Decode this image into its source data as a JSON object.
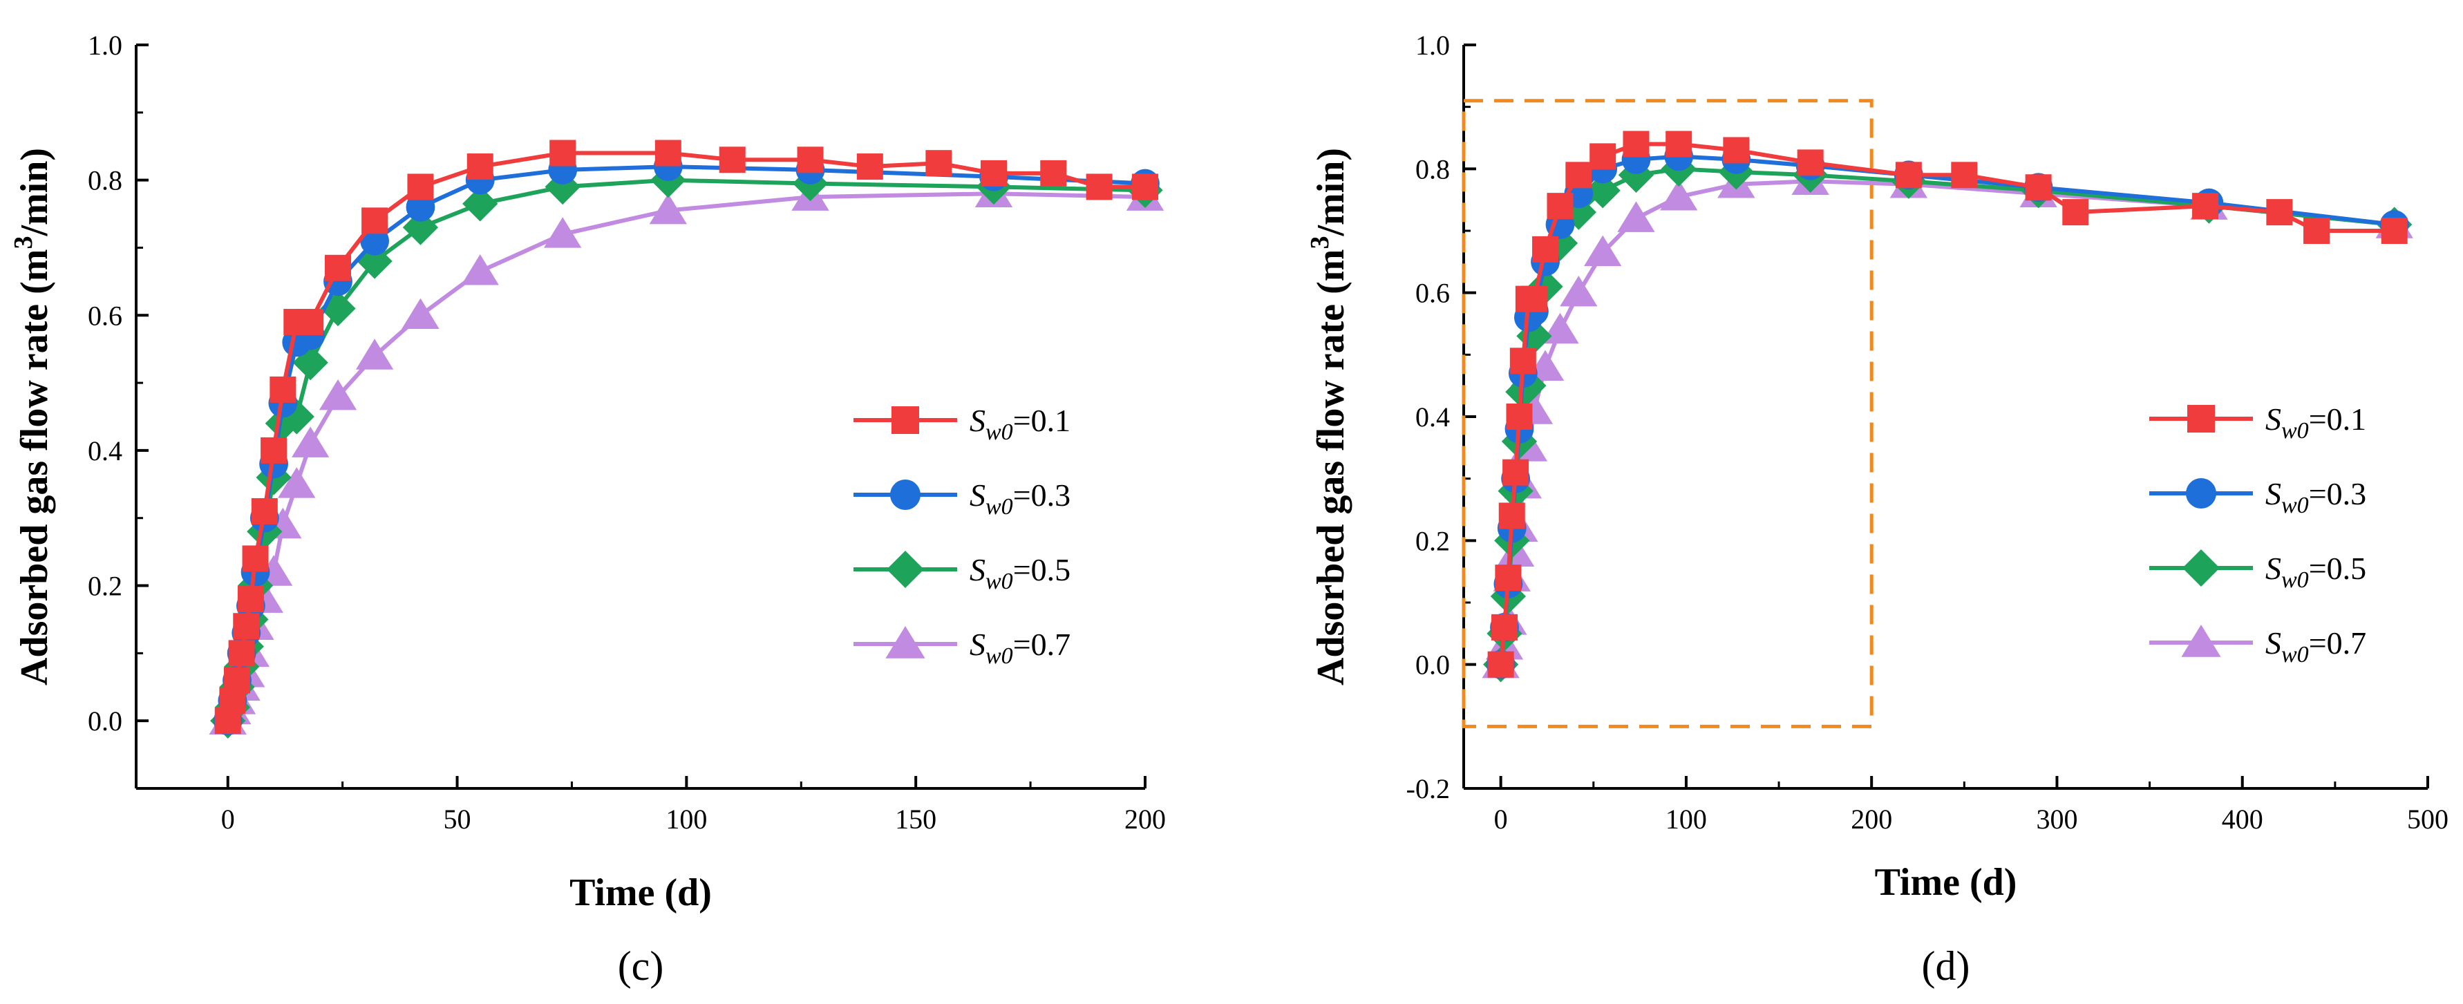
{
  "chart_data": [
    {
      "type": "line",
      "panel_label": "(c)",
      "xlabel": "Time (d)",
      "ylabel": {
        "pre": "Adsorbed gas flow rate (m",
        "sup": "3",
        "post": "/min)"
      },
      "xlim": [
        -20,
        200
      ],
      "ylim": [
        -0.1,
        1.0
      ],
      "xticks": [
        0,
        50,
        100,
        150,
        200
      ],
      "xtick_labels": [
        "0",
        "50",
        "100",
        "150",
        "200"
      ],
      "yticks": [
        0.0,
        0.2,
        0.4,
        0.6,
        0.8,
        1.0
      ],
      "ytick_labels": [
        "0.0",
        "0.2",
        "0.4",
        "0.6",
        "0.8",
        "1.0"
      ],
      "legend_position": "center-right",
      "series": [
        {
          "name": "Sw0=0.1",
          "label_var": "S",
          "label_sub": "w0",
          "label_val": "=0.1",
          "color": "#f03c3c",
          "marker": "square",
          "x": [
            0,
            1,
            2,
            3,
            4,
            5,
            6,
            8,
            10,
            12,
            15,
            18,
            24,
            32,
            42,
            55,
            73,
            96,
            110,
            127,
            140,
            155,
            167,
            180,
            190,
            200
          ],
          "y": [
            0,
            0.03,
            0.06,
            0.1,
            0.14,
            0.18,
            0.24,
            0.31,
            0.4,
            0.49,
            0.59,
            0.59,
            0.67,
            0.74,
            0.79,
            0.82,
            0.84,
            0.84,
            0.83,
            0.83,
            0.82,
            0.825,
            0.81,
            0.81,
            0.79,
            0.79
          ]
        },
        {
          "name": "Sw0=0.3",
          "label_var": "S",
          "label_sub": "w0",
          "label_val": "=0.3",
          "color": "#1e6fd9",
          "marker": "circle",
          "x": [
            0,
            1,
            2,
            3,
            4,
            5,
            6,
            8,
            10,
            12,
            15,
            18,
            24,
            32,
            42,
            55,
            73,
            96,
            127,
            167,
            200
          ],
          "y": [
            0,
            0.03,
            0.06,
            0.1,
            0.13,
            0.17,
            0.22,
            0.3,
            0.38,
            0.47,
            0.56,
            0.57,
            0.65,
            0.71,
            0.76,
            0.8,
            0.815,
            0.82,
            0.815,
            0.805,
            0.795
          ]
        },
        {
          "name": "Sw0=0.5",
          "label_var": "S",
          "label_sub": "w0",
          "label_val": "=0.5",
          "color": "#1ea35a",
          "marker": "diamond",
          "x": [
            0,
            1,
            2,
            3,
            4,
            5,
            6,
            8,
            10,
            12,
            15,
            18,
            24,
            32,
            42,
            55,
            73,
            96,
            127,
            167,
            200
          ],
          "y": [
            0,
            0.02,
            0.05,
            0.08,
            0.11,
            0.15,
            0.2,
            0.28,
            0.36,
            0.44,
            0.45,
            0.53,
            0.61,
            0.68,
            0.73,
            0.765,
            0.79,
            0.8,
            0.795,
            0.79,
            0.785
          ]
        },
        {
          "name": "Sw0=0.7",
          "label_var": "S",
          "label_sub": "w0",
          "label_val": "=0.7",
          "color": "#c08be0",
          "marker": "triangle",
          "x": [
            0,
            1,
            2,
            3,
            4,
            5,
            6,
            8,
            10,
            12,
            15,
            18,
            24,
            32,
            42,
            55,
            73,
            96,
            127,
            167,
            200
          ],
          "y": [
            0,
            0.015,
            0.03,
            0.05,
            0.07,
            0.1,
            0.14,
            0.18,
            0.22,
            0.29,
            0.35,
            0.41,
            0.48,
            0.54,
            0.6,
            0.665,
            0.72,
            0.755,
            0.775,
            0.78,
            0.775
          ]
        }
      ]
    },
    {
      "type": "line",
      "panel_label": "(d)",
      "xlabel": "Time (d)",
      "ylabel": {
        "pre": "Adsorbed gas flow rate (m",
        "sup": "3",
        "post": "/min)"
      },
      "xlim": [
        -20,
        500
      ],
      "ylim": [
        -0.2,
        1.0
      ],
      "xticks": [
        0,
        100,
        200,
        300,
        400,
        500
      ],
      "xtick_labels": [
        "0",
        "100",
        "200",
        "300",
        "400",
        "500"
      ],
      "yticks": [
        -0.2,
        0.0,
        0.2,
        0.4,
        0.6,
        0.8,
        1.0
      ],
      "ytick_labels": [
        "-0.2",
        "0.0",
        "0.2",
        "0.4",
        "0.6",
        "0.8",
        "1.0"
      ],
      "legend_position": "center-right",
      "highlight_box": {
        "x_range": [
          -20,
          200
        ],
        "y_range": [
          -0.1,
          0.91
        ],
        "color": "#f08a1e"
      },
      "series": [
        {
          "name": "Sw0=0.1",
          "label_var": "S",
          "label_sub": "w0",
          "label_val": "=0.1",
          "color": "#f03c3c",
          "marker": "square",
          "x": [
            0,
            2,
            4,
            6,
            8,
            10,
            12,
            15,
            18,
            24,
            32,
            42,
            55,
            73,
            96,
            127,
            167,
            220,
            250,
            290,
            310,
            380,
            420,
            440,
            482
          ],
          "y": [
            0,
            0.06,
            0.14,
            0.24,
            0.31,
            0.4,
            0.49,
            0.59,
            0.59,
            0.67,
            0.74,
            0.79,
            0.82,
            0.84,
            0.84,
            0.83,
            0.81,
            0.79,
            0.79,
            0.77,
            0.73,
            0.74,
            0.73,
            0.7,
            0.7
          ]
        },
        {
          "name": "Sw0=0.3",
          "label_var": "S",
          "label_sub": "w0",
          "label_val": "=0.3",
          "color": "#1e6fd9",
          "marker": "circle",
          "x": [
            0,
            2,
            4,
            6,
            8,
            10,
            12,
            15,
            18,
            24,
            32,
            42,
            55,
            73,
            96,
            127,
            167,
            220,
            290,
            382,
            482
          ],
          "y": [
            0,
            0.06,
            0.13,
            0.22,
            0.3,
            0.38,
            0.47,
            0.56,
            0.57,
            0.65,
            0.71,
            0.76,
            0.8,
            0.815,
            0.82,
            0.815,
            0.805,
            0.79,
            0.77,
            0.745,
            0.71
          ]
        },
        {
          "name": "Sw0=0.5",
          "label_var": "S",
          "label_sub": "w0",
          "label_val": "=0.5",
          "color": "#1ea35a",
          "marker": "diamond",
          "x": [
            0,
            2,
            4,
            6,
            8,
            10,
            12,
            15,
            18,
            24,
            32,
            42,
            55,
            73,
            96,
            127,
            167,
            220,
            290,
            382,
            482
          ],
          "y": [
            0,
            0.05,
            0.11,
            0.2,
            0.28,
            0.36,
            0.44,
            0.45,
            0.53,
            0.61,
            0.68,
            0.73,
            0.765,
            0.79,
            0.8,
            0.795,
            0.79,
            0.78,
            0.765,
            0.74,
            0.71
          ]
        },
        {
          "name": "Sw0=0.7",
          "label_var": "S",
          "label_sub": "w0",
          "label_val": "=0.7",
          "color": "#c08be0",
          "marker": "triangle",
          "x": [
            0,
            2,
            4,
            6,
            8,
            10,
            12,
            15,
            18,
            24,
            32,
            42,
            55,
            73,
            96,
            127,
            167,
            220,
            290,
            382,
            482
          ],
          "y": [
            0,
            0.03,
            0.07,
            0.14,
            0.18,
            0.22,
            0.29,
            0.35,
            0.41,
            0.48,
            0.54,
            0.6,
            0.665,
            0.72,
            0.755,
            0.775,
            0.78,
            0.775,
            0.76,
            0.74,
            0.71
          ]
        }
      ]
    }
  ]
}
